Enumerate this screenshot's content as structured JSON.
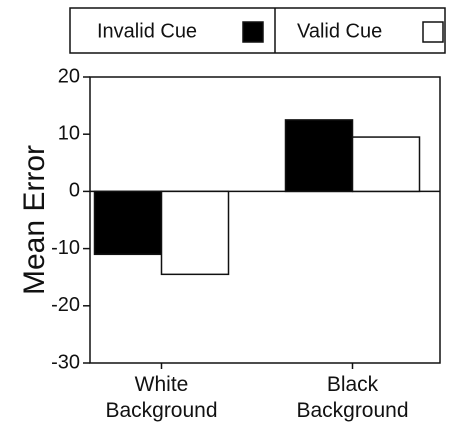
{
  "chart_data": {
    "type": "bar",
    "ylabel": "Mean Error",
    "categories": [
      "White Background",
      "Black Background"
    ],
    "series": [
      {
        "name": "Invalid Cue",
        "color": "#000000",
        "values": [
          -11,
          12.5
        ]
      },
      {
        "name": "Valid Cue",
        "color": "#ffffff",
        "values": [
          -14.5,
          9.5
        ]
      }
    ],
    "ylim": [
      -30,
      20
    ],
    "yticks": [
      -30,
      -20,
      -10,
      0,
      10,
      20
    ],
    "legend": "top"
  }
}
